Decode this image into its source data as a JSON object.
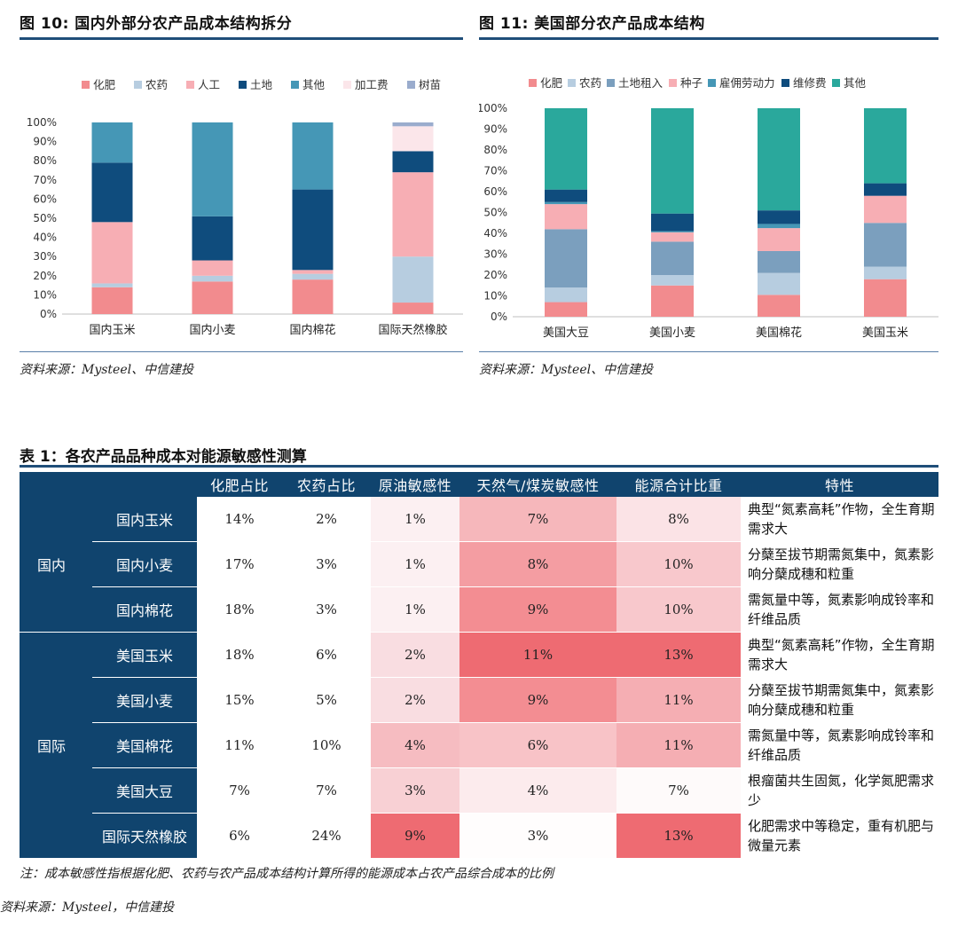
{
  "fig10": {
    "title": "图 10:  国内外部分农产品成本结构拆分",
    "source": "资料来源：Mysteel、中信建投"
  },
  "fig11": {
    "title": "图 11:  美国部分农产品成本结构",
    "source": "资料来源：Mysteel、中信建投"
  },
  "chart_data": [
    {
      "type": "bar",
      "stacked": true,
      "percent": true,
      "title": "国内外部分农产品成本结构拆分",
      "categories": [
        "国内玉米",
        "国内小麦",
        "国内棉花",
        "国际天然橡胶"
      ],
      "ylim": [
        0,
        100
      ],
      "yticks": [
        "0%",
        "10%",
        "20%",
        "30%",
        "40%",
        "50%",
        "60%",
        "70%",
        "80%",
        "90%",
        "100%"
      ],
      "legend_position": "top",
      "series": [
        {
          "name": "化肥",
          "color": "#f28b8e",
          "values": [
            14,
            17,
            18,
            6
          ]
        },
        {
          "name": "农药",
          "color": "#b7cde0",
          "values": [
            2,
            3,
            3,
            24
          ]
        },
        {
          "name": "人工",
          "color": "#f7aeb4",
          "values": [
            32,
            8,
            2,
            44
          ]
        },
        {
          "name": "土地",
          "color": "#0f4c7d",
          "values": [
            31,
            23,
            42,
            11
          ]
        },
        {
          "name": "其他",
          "color": "#4597b6",
          "values": [
            21,
            49,
            35,
            0
          ]
        },
        {
          "name": "加工费",
          "color": "#fbe6ea",
          "values": [
            0,
            0,
            0,
            13
          ]
        },
        {
          "name": "树苗",
          "color": "#9aaccd",
          "values": [
            0,
            0,
            0,
            2
          ]
        }
      ]
    },
    {
      "type": "bar",
      "stacked": true,
      "percent": true,
      "title": "美国部分农产品成本结构",
      "categories": [
        "美国大豆",
        "美国小麦",
        "美国棉花",
        "美国玉米"
      ],
      "ylim": [
        0,
        100
      ],
      "yticks": [
        "0%",
        "10%",
        "20%",
        "30%",
        "40%",
        "50%",
        "60%",
        "70%",
        "80%",
        "90%",
        "100%"
      ],
      "legend_position": "top",
      "series": [
        {
          "name": "化肥",
          "color": "#f28b8e",
          "values": [
            7,
            15,
            10.5,
            18
          ]
        },
        {
          "name": "农药",
          "color": "#b7cde0",
          "values": [
            7,
            5,
            10.5,
            6
          ]
        },
        {
          "name": "土地租入",
          "color": "#7b9fbe",
          "values": [
            28,
            16,
            10.5,
            21
          ]
        },
        {
          "name": "种子",
          "color": "#f7aeb4",
          "values": [
            12,
            4.5,
            11,
            13
          ]
        },
        {
          "name": "雇佣劳动力",
          "color": "#4597b6",
          "values": [
            1,
            0.5,
            2,
            0
          ]
        },
        {
          "name": "维修费",
          "color": "#0f4c7d",
          "values": [
            6,
            8.5,
            6.5,
            6
          ]
        },
        {
          "name": "其他",
          "color": "#2aa89c",
          "values": [
            39,
            50.5,
            49,
            36
          ]
        }
      ]
    }
  ],
  "table": {
    "title": "表 1：各农产品品种成本对能源敏感性测算",
    "headers": [
      "",
      "",
      "化肥占比",
      "农药占比",
      "原油敏感性",
      "天然气/煤炭敏感性",
      "能源合计比重",
      "特性"
    ],
    "regions": [
      "国内",
      "国际"
    ],
    "rows": [
      {
        "product": "国内玉米",
        "fert": "14%",
        "pest": "2%",
        "oil": "1%",
        "gas": "7%",
        "total": "8%",
        "feature": "典型“氮素高耗”作物，全生育期需求大",
        "oil_color": "#fcf0f2",
        "gas_color": "#f6b7bb",
        "total_color": "#fbe3e6"
      },
      {
        "product": "国内小麦",
        "fert": "17%",
        "pest": "3%",
        "oil": "1%",
        "gas": "8%",
        "total": "10%",
        "feature": "分蘖至拔节期需氮集中，氮素影响分蘖成穗和粒重",
        "oil_color": "#fcf0f2",
        "gas_color": "#f49da2",
        "total_color": "#f8c8cc"
      },
      {
        "product": "国内棉花",
        "fert": "18%",
        "pest": "3%",
        "oil": "1%",
        "gas": "9%",
        "total": "10%",
        "feature": "需氮量中等，氮素影响成铃率和纤维品质",
        "oil_color": "#fcf0f2",
        "gas_color": "#f38d92",
        "total_color": "#f8c8cc"
      },
      {
        "product": "美国玉米",
        "fert": "18%",
        "pest": "6%",
        "oil": "2%",
        "gas": "11%",
        "total": "13%",
        "feature": "典型“氮素高耗”作物，全生育期需求大",
        "oil_color": "#f9dde1",
        "gas_color": "#ee6b72",
        "total_color": "#ee6b72"
      },
      {
        "product": "美国小麦",
        "fert": "15%",
        "pest": "5%",
        "oil": "2%",
        "gas": "9%",
        "total": "11%",
        "feature": "分蘖至拔节期需氮集中，氮素影响分蘖成穗和粒重",
        "oil_color": "#f9dde1",
        "gas_color": "#f38d92",
        "total_color": "#f5aeb3"
      },
      {
        "product": "美国棉花",
        "fert": "11%",
        "pest": "10%",
        "oil": "4%",
        "gas": "6%",
        "total": "11%",
        "feature": "需氮量中等，氮素影响成铃率和纤维品质",
        "oil_color": "#f6bcc1",
        "gas_color": "#f8c3c7",
        "total_color": "#f5aeb3"
      },
      {
        "product": "美国大豆",
        "fert": "7%",
        "pest": "7%",
        "oil": "3%",
        "gas": "4%",
        "total": "7%",
        "feature": "根瘤菌共生固氮，化学氮肥需求少",
        "oil_color": "#f8d0d4",
        "gas_color": "#fcebed",
        "total_color": "#fefafa"
      },
      {
        "product": "国际天然橡胶",
        "fert": "6%",
        "pest": "24%",
        "oil": "9%",
        "gas": "3%",
        "total": "13%",
        "feature": "化肥需求中等稳定，重有机肥与微量元素",
        "oil_color": "#ee6b72",
        "gas_color": "#fffdfd",
        "total_color": "#ee6b72"
      }
    ],
    "note": "注：成本敏感性指根据化肥、农药与农产品成本结构计算所得的能源成本占农产品综合成本的比例",
    "source": "资料来源：Mysteel，中信建投"
  }
}
